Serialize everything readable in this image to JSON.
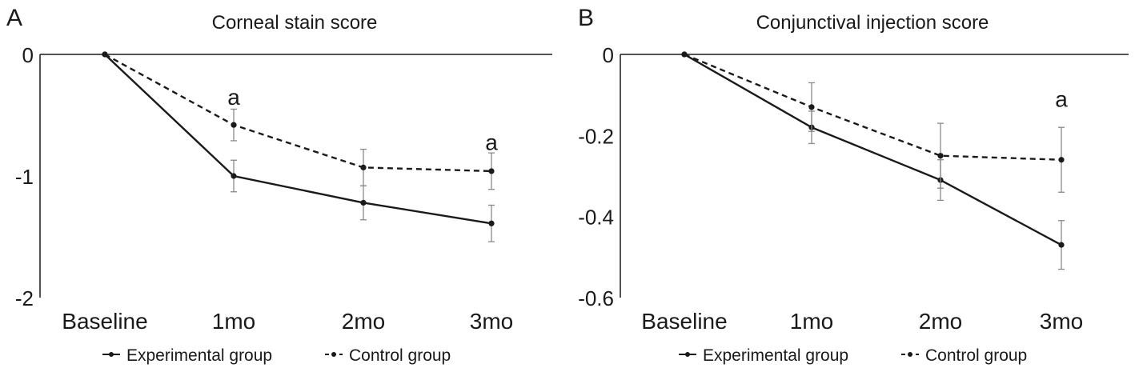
{
  "chart_data": [
    {
      "type": "line",
      "panel_label": "A",
      "title": "Corneal stain score",
      "categories": [
        "Baseline",
        "1mo",
        "2mo",
        "3mo"
      ],
      "ylim": [
        -2,
        0
      ],
      "yticks": [
        0,
        -1,
        -2
      ],
      "ytick_labels": [
        "0",
        "-1",
        "-2"
      ],
      "grid": false,
      "legend_position": "bottom",
      "series": [
        {
          "name": "Experimental group",
          "style": "solid",
          "values": [
            0,
            -1.0,
            -1.22,
            -1.39
          ],
          "error": [
            null,
            0.13,
            0.14,
            0.15
          ]
        },
        {
          "name": "Control group",
          "style": "dashed",
          "values": [
            0,
            -0.58,
            -0.93,
            -0.96
          ],
          "error": [
            null,
            0.13,
            0.15,
            0.15
          ]
        }
      ],
      "annotations": [
        {
          "text": "a",
          "category": "1mo",
          "y": -0.35
        },
        {
          "text": "a",
          "category": "3mo",
          "y": -0.72
        }
      ]
    },
    {
      "type": "line",
      "panel_label": "B",
      "title": "Conjunctival injection score",
      "categories": [
        "Baseline",
        "1mo",
        "2mo",
        "3mo"
      ],
      "ylim": [
        -0.6,
        0
      ],
      "yticks": [
        0,
        -0.2,
        -0.4,
        -0.6
      ],
      "ytick_labels": [
        "0",
        "-0.2",
        "-0.4",
        "-0.6"
      ],
      "grid": false,
      "legend_position": "bottom",
      "series": [
        {
          "name": "Experimental group",
          "style": "solid",
          "values": [
            0,
            -0.18,
            -0.31,
            -0.47
          ],
          "error": [
            null,
            0.04,
            0.05,
            0.06
          ]
        },
        {
          "name": "Control group",
          "style": "dashed",
          "values": [
            0,
            -0.13,
            -0.25,
            -0.26
          ],
          "error": [
            null,
            0.06,
            0.08,
            0.08
          ]
        }
      ],
      "annotations": [
        {
          "text": "a",
          "category": "3mo",
          "y": -0.11
        }
      ]
    }
  ],
  "colors": {
    "line": "#1a1a1a",
    "errorbar": "#8a8a8a"
  }
}
